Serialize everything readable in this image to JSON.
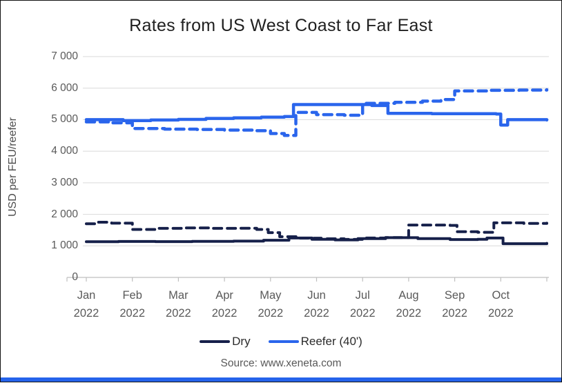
{
  "page": {
    "title": "Rates from US West Coast to Far East",
    "source": "Source: www.xeneta.com"
  },
  "colors": {
    "dry_navy": "#16204a",
    "reefer_blue": "#2a65ec",
    "gridline": "#d9d9d9",
    "axis": "#bfbfbf",
    "tick_text": "#595959",
    "brand_bar": "#2563eb"
  },
  "legend": [
    {
      "label": "Dry",
      "color": "#16204a",
      "style": "solid"
    },
    {
      "label": "Reefer (40')",
      "color": "#2a65ec",
      "style": "solid"
    }
  ],
  "chart_data": {
    "type": "line",
    "title": "Rates from US West Coast to Far East",
    "xlabel": "",
    "ylabel": "USD per FEU/reefer",
    "ylim": [
      0,
      7000
    ],
    "grid": true,
    "legend_position": "bottom",
    "y_tick_labels": [
      "0",
      "1 000",
      "2 000",
      "3 000",
      "4 000",
      "5 000",
      "6 000",
      "7 000"
    ],
    "x_tick_labels": [
      {
        "month": "Jan",
        "year": "2022"
      },
      {
        "month": "Feb",
        "year": "2022"
      },
      {
        "month": "Mar",
        "year": "2022"
      },
      {
        "month": "Apr",
        "year": "2022"
      },
      {
        "month": "May",
        "year": "2022"
      },
      {
        "month": "Jun",
        "year": "2022"
      },
      {
        "month": "Jul",
        "year": "2022"
      },
      {
        "month": "Aug",
        "year": "2022"
      },
      {
        "month": "Sep",
        "year": "2022"
      },
      {
        "month": "Oct",
        "year": "2022"
      }
    ],
    "x_unit": "months since Jan 2022 (0 = Jan 1, 10 = end of Oct)",
    "series": [
      {
        "name": "Reefer (40') (dashed)",
        "color": "#2a65ec",
        "dash": "dashed",
        "width": 4.5,
        "points": [
          [
            0,
            4930
          ],
          [
            0.5,
            4900
          ],
          [
            1.0,
            4720
          ],
          [
            1.7,
            4700
          ],
          [
            2.4,
            4690
          ],
          [
            3.0,
            4670
          ],
          [
            3.6,
            4650
          ],
          [
            4.0,
            4560
          ],
          [
            4.3,
            4500
          ],
          [
            4.55,
            5230
          ],
          [
            5.0,
            5160
          ],
          [
            5.6,
            5140
          ],
          [
            6.0,
            5520
          ],
          [
            6.7,
            5550
          ],
          [
            7.3,
            5590
          ],
          [
            7.7,
            5640
          ],
          [
            8.0,
            5910
          ],
          [
            8.7,
            5930
          ],
          [
            9.4,
            5940
          ],
          [
            10,
            5950
          ]
        ]
      },
      {
        "name": "Dry (dashed)",
        "color": "#16204a",
        "dash": "dashed",
        "width": 4,
        "points": [
          [
            0,
            1700
          ],
          [
            0.25,
            1750
          ],
          [
            0.55,
            1720
          ],
          [
            1.0,
            1520
          ],
          [
            1.5,
            1555
          ],
          [
            2.1,
            1570
          ],
          [
            2.7,
            1555
          ],
          [
            3.3,
            1560
          ],
          [
            3.7,
            1520
          ],
          [
            3.95,
            1420
          ],
          [
            4.2,
            1290
          ],
          [
            4.6,
            1245
          ],
          [
            5.1,
            1225
          ],
          [
            5.6,
            1205
          ],
          [
            6.0,
            1250
          ],
          [
            6.5,
            1265
          ],
          [
            7.0,
            1660
          ],
          [
            7.9,
            1650
          ],
          [
            8.05,
            1450
          ],
          [
            8.5,
            1430
          ],
          [
            8.85,
            1730
          ],
          [
            9.5,
            1710
          ],
          [
            10,
            1720
          ]
        ]
      },
      {
        "name": "Reefer (40')",
        "color": "#2a65ec",
        "dash": "solid",
        "width": 4.5,
        "points": [
          [
            0,
            5000
          ],
          [
            0.8,
            4970
          ],
          [
            1.4,
            4990
          ],
          [
            2.0,
            5010
          ],
          [
            2.6,
            5040
          ],
          [
            3.2,
            5060
          ],
          [
            3.8,
            5080
          ],
          [
            4.3,
            5100
          ],
          [
            4.5,
            5480
          ],
          [
            5.8,
            5480
          ],
          [
            6.2,
            5450
          ],
          [
            6.55,
            5200
          ],
          [
            7.5,
            5190
          ],
          [
            8.9,
            5180
          ],
          [
            9.0,
            4830
          ],
          [
            9.15,
            5000
          ],
          [
            10,
            4990
          ]
        ]
      },
      {
        "name": "Dry",
        "color": "#16204a",
        "dash": "solid",
        "width": 4,
        "points": [
          [
            0,
            1130
          ],
          [
            0.7,
            1140
          ],
          [
            1.5,
            1135
          ],
          [
            2.3,
            1145
          ],
          [
            3.2,
            1150
          ],
          [
            3.85,
            1180
          ],
          [
            4.4,
            1250
          ],
          [
            4.9,
            1210
          ],
          [
            5.4,
            1190
          ],
          [
            5.9,
            1230
          ],
          [
            6.5,
            1260
          ],
          [
            7.2,
            1230
          ],
          [
            7.9,
            1200
          ],
          [
            8.5,
            1210
          ],
          [
            8.7,
            1250
          ],
          [
            8.95,
            1250
          ],
          [
            9.05,
            1070
          ],
          [
            10,
            1080
          ]
        ]
      }
    ]
  }
}
